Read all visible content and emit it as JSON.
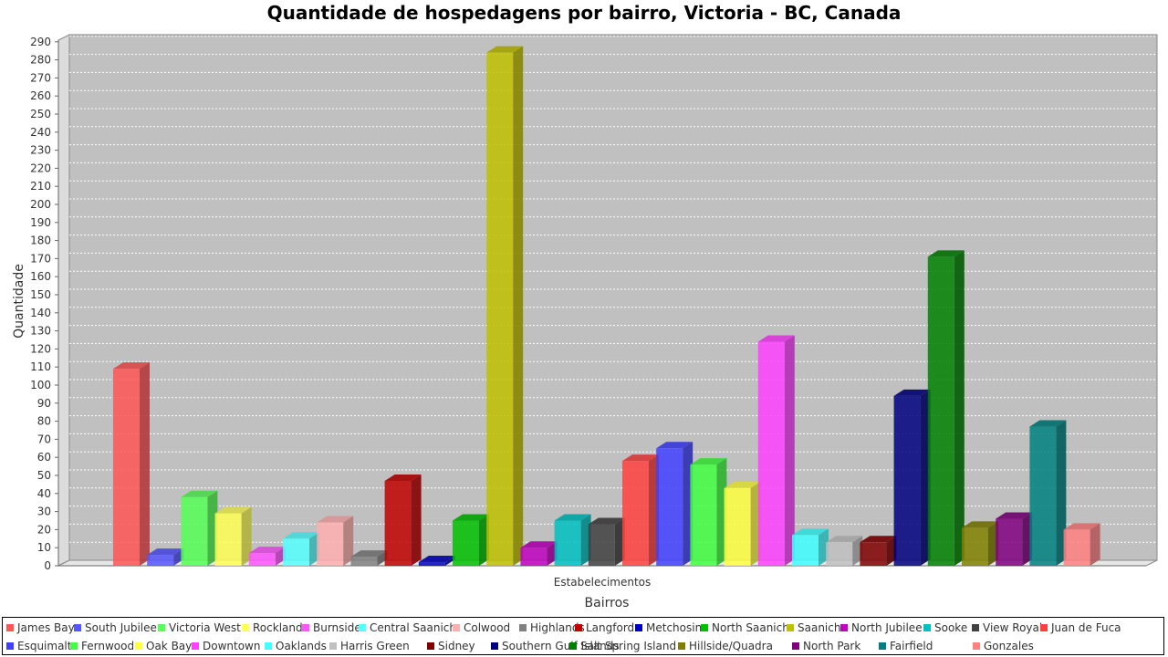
{
  "chart_data": {
    "type": "bar",
    "title": "Quantidade de hospedagens por bairro, Victoria - BC, Canada",
    "xlabel": "Bairros",
    "ylabel": "Quantidade",
    "category_label": "Estabelecimentos",
    "ylim": [
      0,
      290
    ],
    "ytick_step": 10,
    "grid": true,
    "legend_position": "bottom",
    "series": [
      {
        "name": "James Bay",
        "value": 109,
        "color": "#ff5555"
      },
      {
        "name": "South Jubilee",
        "value": 6,
        "color": "#5555ff"
      },
      {
        "name": "Victoria West",
        "value": 38,
        "color": "#55ff55"
      },
      {
        "name": "Rockland",
        "value": 29,
        "color": "#ffff55"
      },
      {
        "name": "Burnside",
        "value": 7,
        "color": "#ff55ff"
      },
      {
        "name": "Central Saanich",
        "value": 15,
        "color": "#55ffff"
      },
      {
        "name": "Colwood",
        "value": 24,
        "color": "#ffafaf"
      },
      {
        "name": "Highlands",
        "value": 5,
        "color": "#808080"
      },
      {
        "name": "Langford",
        "value": 47,
        "color": "#c00000"
      },
      {
        "name": "Metchosin",
        "value": 2,
        "color": "#0000c0"
      },
      {
        "name": "North Saanich",
        "value": 25,
        "color": "#00c000"
      },
      {
        "name": "Saanich",
        "value": 284,
        "color": "#c0c000"
      },
      {
        "name": "North Jubilee",
        "value": 10,
        "color": "#c000c0"
      },
      {
        "name": "Sooke",
        "value": 25,
        "color": "#00c0c0"
      },
      {
        "name": "View Royal",
        "value": 23,
        "color": "#404040"
      },
      {
        "name": "Juan de Fuca",
        "value": 58,
        "color": "#ff4040"
      },
      {
        "name": "Esquimalt",
        "value": 65,
        "color": "#4040ff"
      },
      {
        "name": "Fernwood",
        "value": 56,
        "color": "#40ff40"
      },
      {
        "name": "Oak Bay",
        "value": 43,
        "color": "#ffff40"
      },
      {
        "name": "Downtown",
        "value": 124,
        "color": "#ff40ff"
      },
      {
        "name": "Oaklands",
        "value": 17,
        "color": "#40ffff"
      },
      {
        "name": "Harris Green",
        "value": 13,
        "color": "#c0c0c0"
      },
      {
        "name": "Sidney",
        "value": 13,
        "color": "#800000"
      },
      {
        "name": "Southern Gulf Islands",
        "value": 94,
        "color": "#000080"
      },
      {
        "name": "Salt Spring Island",
        "value": 171,
        "color": "#008000"
      },
      {
        "name": "Hillside/Quadra",
        "value": 21,
        "color": "#808000"
      },
      {
        "name": "North Park",
        "value": 26,
        "color": "#800080"
      },
      {
        "name": "Fairfield",
        "value": 77,
        "color": "#008080"
      },
      {
        "name": "Gonzales",
        "value": 20,
        "color": "#ff8080"
      }
    ]
  }
}
